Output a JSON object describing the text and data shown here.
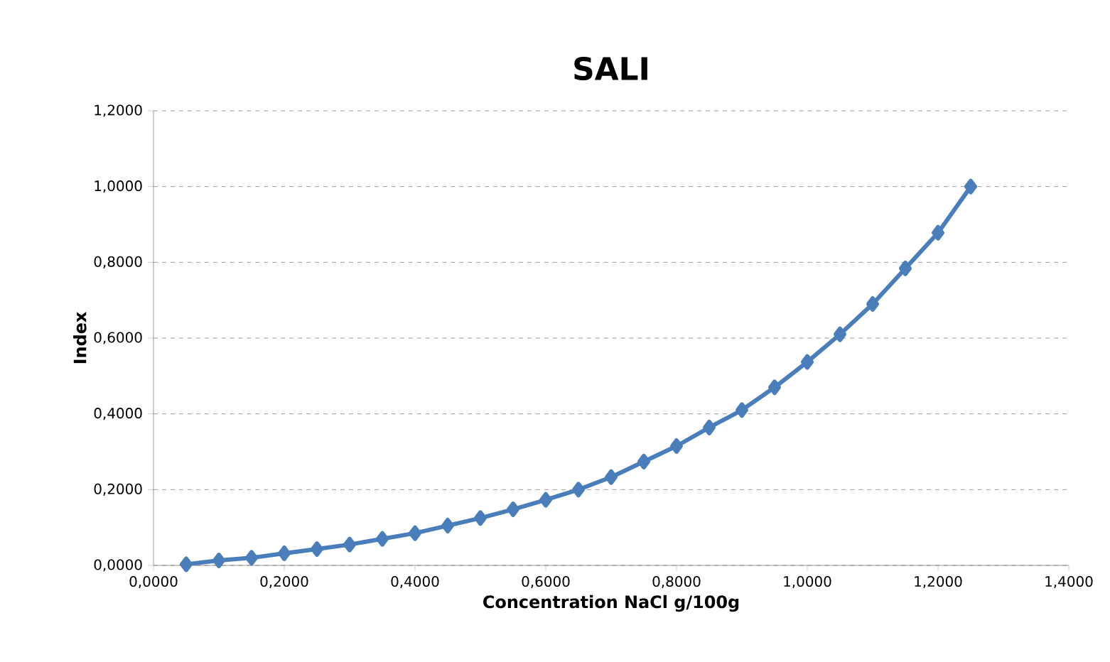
{
  "chart_data": {
    "type": "line",
    "title": "SALI",
    "xlabel": "Concentration NaCl g/100g",
    "ylabel": "Index",
    "x": [
      0.05,
      0.1,
      0.15,
      0.2,
      0.25,
      0.3,
      0.35,
      0.4,
      0.45,
      0.5,
      0.55,
      0.6,
      0.65,
      0.7,
      0.75,
      0.8,
      0.85,
      0.9,
      0.95,
      1.0,
      1.05,
      1.1,
      1.15,
      1.2,
      1.25
    ],
    "series": [
      {
        "color": "#4a7ebb",
        "values": [
          0.003,
          0.013,
          0.02,
          0.032,
          0.043,
          0.055,
          0.07,
          0.085,
          0.105,
          0.125,
          0.148,
          0.173,
          0.2,
          0.233,
          0.274,
          0.315,
          0.364,
          0.41,
          0.47,
          0.537,
          0.61,
          0.69,
          0.784,
          0.878,
          1.0
        ]
      }
    ],
    "xlim": [
      0,
      1.4
    ],
    "ylim": [
      0,
      1.2
    ],
    "xticks": [
      {
        "value": 0,
        "label": "0,0000"
      },
      {
        "value": 0.2,
        "label": "0,2000"
      },
      {
        "value": 0.4,
        "label": "0,4000"
      },
      {
        "value": 0.6,
        "label": "0,6000"
      },
      {
        "value": 0.8,
        "label": "0,8000"
      },
      {
        "value": 1.0,
        "label": "1,0000"
      },
      {
        "value": 1.2,
        "label": "1,2000"
      },
      {
        "value": 1.4,
        "label": "1,4000"
      }
    ],
    "yticks": [
      {
        "value": 0,
        "label": "0,0000"
      },
      {
        "value": 0.2,
        "label": "0,2000"
      },
      {
        "value": 0.4,
        "label": "0,4000"
      },
      {
        "value": 0.6,
        "label": "0,6000"
      },
      {
        "value": 0.8,
        "label": "0,8000"
      },
      {
        "value": 1.0,
        "label": "1,0000"
      },
      {
        "value": 1.2,
        "label": "1,2000"
      }
    ],
    "grid": "y",
    "marker": "diamond",
    "line_style": "solid"
  }
}
